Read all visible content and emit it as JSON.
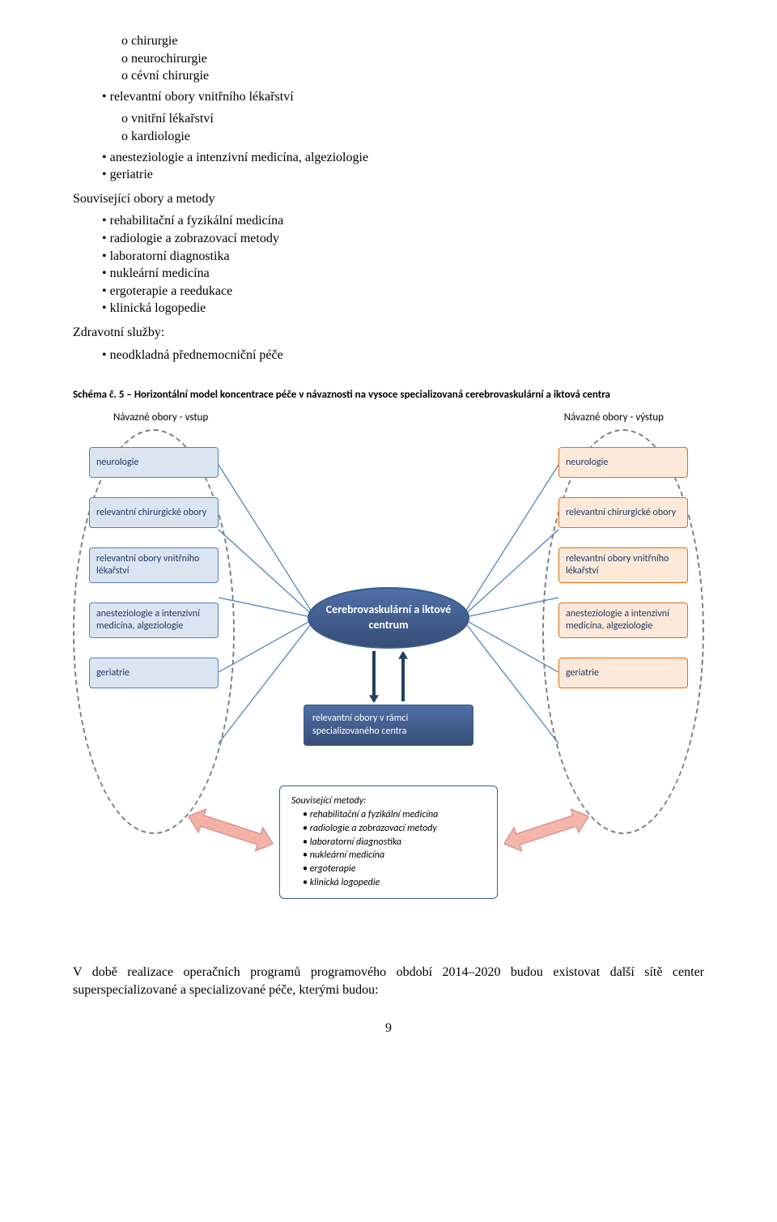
{
  "colors": {
    "text": "#000000",
    "pageBg": "#ffffff",
    "nodeBorderLeft": "#4f81bd",
    "nodeBgLeft": "#dbe5f1",
    "nodeBorderRight": "#e46c0a",
    "nodeBgRight": "#fde9d9",
    "centerFill": "#4f6fa8",
    "centerGrad2": "#374e77",
    "centerBorder": "#385d8a",
    "belowFill": "#4f6fa8",
    "methodsBorder": "#385d8a",
    "methodsBg": "#ffffff",
    "ellipseBorder": "#7f7f7f",
    "thinLine": "#4a7ebb",
    "smallArrowFill": "#254061",
    "bigArrowFillL": "#f4b2a6",
    "bigArrowStrokeL": "#d99694",
    "bigArrowFillR": "#f4b6a8",
    "bigArrowStrokeR": "#d99694"
  },
  "textTop": {
    "sub1": [
      "chirurgie",
      "neurochirurgie",
      "cévní chirurgie"
    ],
    "b1": "relevantní obory vnitřního lékařství",
    "sub2": [
      "vnitřní lékařství",
      "kardiologie"
    ],
    "b2": "anesteziologie a intenzivní medicína, algeziologie",
    "b3": "geriatrie",
    "h2": "Související obory a metody",
    "list2": [
      "rehabilitační a fyzikální medicína",
      "radiologie a zobrazovací metody",
      "laboratorní diagnostika",
      "nukleární medicína",
      "ergoterapie a reedukace",
      "klinická logopedie"
    ],
    "h3": "Zdravotní služby:",
    "list3": [
      "neodkladná přednemocniční péče"
    ]
  },
  "schema": {
    "title": "Schéma č. 5 – Horizontální model koncentrace péče v návaznosti na vysoce specializovaná cerebrovaskulární a iktová centra",
    "leftHeader": "Návazné obory - vstup",
    "rightHeader": "Návazné obory - výstup",
    "leftNodes": [
      "neurologie",
      "relevantní chirurgické obory",
      "relevantní obory vnitřního lékařství",
      "anesteziologie a intenzivní medicína, algeziologie",
      "geriatrie"
    ],
    "rightNodes": [
      "neurologie",
      "relevantní chirurgické obory",
      "relevantní obory vnitřního lékařství",
      "anesteziologie a intenzivní medicína, algeziologie",
      "geriatrie"
    ],
    "center": "Cerebrovaskulární a iktové centrum",
    "below": "relevantní obory v rámci specializovaného centra",
    "methodsTitle": "Související metody:",
    "methods": [
      "rehabilitační a fyzikální medicína",
      "radiologie a zobrazovací metody",
      "laboratorní diagnostika",
      "nukleární medicína",
      "ergoterapie",
      "klinická logopedie"
    ]
  },
  "footer": "V době realizace operačních programů programového období 2014–2020 budou existovat další sítě center superspecializované a specializované péče, kterými budou:",
  "pageNumber": "9"
}
